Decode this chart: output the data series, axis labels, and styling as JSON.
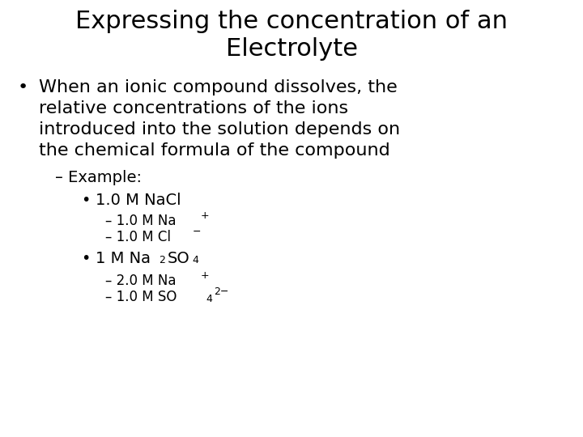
{
  "background_color": "#ffffff",
  "text_color": "#000000",
  "title_line1": "Expressing the concentration of an",
  "title_line2": "Electrolyte",
  "title_fontsize": 22,
  "body_fontsize": 16,
  "sub_fontsize": 14,
  "subsub_fontsize": 12,
  "tiny_fontsize": 9
}
